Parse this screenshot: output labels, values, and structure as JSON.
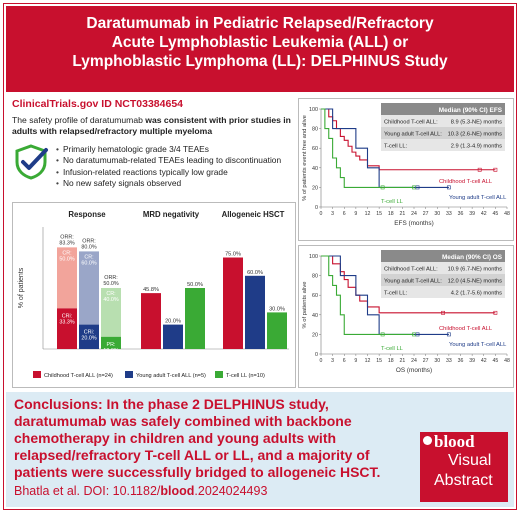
{
  "header": {
    "title": "Daratumumab in Pediatric Relapsed/Refractory\nAcute Lymphoblastic Leukemia (ALL) or\nLymphoblastic Lymphoma (LL): DELPHINUS Study"
  },
  "trial": {
    "id_label": "ClinicalTrials.gov ID NCT03384654"
  },
  "summary": {
    "prefix": "The safety profile of daratumumab ",
    "bold": "was consistent with prior studies in adults with relapsed/refractory multiple myeloma"
  },
  "bullets": [
    "Primarily hematologic grade 3/4 TEAEs",
    "No daratumumab-related TEAEs leading to discontinuation",
    "Infusion-related reactions typically low grade",
    "No new safety signals observed"
  ],
  "colors": {
    "childhood": "#c8102e",
    "young_adult": "#1f3c88",
    "tcell_ll": "#3aaa35",
    "brand": "#c8102e",
    "conclusion_bg": "#dcebf4"
  },
  "icons": [
    "check-shield-icon",
    "blood-logo-icon"
  ],
  "chart_data": [
    {
      "type": "bar",
      "ylabel": "% of patients",
      "ylim": [
        0,
        100
      ],
      "groups": [
        "Response",
        "MRD negativity",
        "Allogeneic HSCT"
      ],
      "series": [
        {
          "name": "Childhood T-cell ALL (n=24)"
        },
        {
          "name": "Young adult T-cell ALL (n=5)"
        },
        {
          "name": "T-cell LL (n=10)"
        }
      ],
      "response": {
        "orr": [
          83.3,
          80.0,
          50.0
        ],
        "orr_labels": [
          "ORR:\n83.3%",
          "ORR:\n80.0%",
          "ORR:\n50.0%"
        ],
        "cr": [
          33.3,
          20.0,
          10.0
        ],
        "cr_labels": [
          "CRi:\n33.3%",
          "CRi:\n20.0%",
          "PR:\n10.0%"
        ],
        "upper": [
          50.0,
          60.0,
          40.0
        ],
        "upper_labels": [
          "CR:\n50.0%",
          "CR:\n60.0%",
          "CR:\n40.0%"
        ]
      },
      "mrd_negativity": [
        45.8,
        20.0,
        50.0
      ],
      "mrd_labels": [
        "45.8%",
        "20.0%",
        "50.0%"
      ],
      "allogeneic_hsct": [
        75.0,
        60.0,
        30.0
      ],
      "hsct_labels": [
        "75.0%",
        "60.0%",
        "30.0%"
      ]
    },
    {
      "type": "line",
      "title": "Median (90% CI) EFS",
      "ylabel": "% of patients event free and alive",
      "xlabel": "EFS (months)",
      "xlim": [
        0,
        48
      ],
      "ylim": [
        0,
        100
      ],
      "xticks": [
        0,
        3,
        6,
        9,
        12,
        15,
        18,
        21,
        24,
        27,
        30,
        33,
        36,
        39,
        42,
        45,
        48
      ],
      "yticks": [
        0,
        20,
        40,
        60,
        80,
        100
      ],
      "table": [
        {
          "label": "Childhood T-cell ALL:",
          "value": "8.9 (5.3-NE) months"
        },
        {
          "label": "Young adult T-cell ALL:",
          "value": "10.3 (2.6-NE) months"
        },
        {
          "label": "T-cell LL:",
          "value": "2.9 (1.3-4.9) months"
        }
      ],
      "series": [
        {
          "name": "Childhood T-cell ALL",
          "x": [
            0,
            2,
            3,
            4,
            5,
            6,
            7,
            8,
            9,
            10,
            12,
            15,
            36,
            45
          ],
          "y": [
            100,
            92,
            88,
            80,
            72,
            68,
            62,
            56,
            52,
            48,
            42,
            38,
            38,
            38
          ]
        },
        {
          "name": "Young adult T-cell ALL",
          "x": [
            0,
            3,
            9,
            12,
            15,
            33
          ],
          "y": [
            100,
            80,
            60,
            40,
            20,
            20
          ]
        },
        {
          "name": "T-cell LL",
          "x": [
            0,
            1,
            2,
            3,
            4,
            5,
            6,
            24
          ],
          "y": [
            100,
            80,
            70,
            50,
            40,
            30,
            20,
            20
          ]
        }
      ]
    },
    {
      "type": "line",
      "title": "Median (90% CI) OS",
      "ylabel": "% of patients alive",
      "xlabel": "OS (months)",
      "xlim": [
        0,
        48
      ],
      "ylim": [
        0,
        100
      ],
      "xticks": [
        0,
        3,
        6,
        9,
        12,
        15,
        18,
        21,
        24,
        27,
        30,
        33,
        36,
        39,
        42,
        45,
        48
      ],
      "yticks": [
        0,
        20,
        40,
        60,
        80,
        100
      ],
      "table": [
        {
          "label": "Childhood T-cell ALL:",
          "value": "10.9 (6.7-NE) months"
        },
        {
          "label": "Young adult T-cell ALL:",
          "value": "12.0 (4.5-NE) months"
        },
        {
          "label": "T-cell LL:",
          "value": "4.2 (1.7-5.6) months"
        }
      ],
      "series": [
        {
          "name": "Childhood T-cell ALL",
          "x": [
            0,
            3,
            5,
            6,
            7,
            9,
            10,
            12,
            15,
            45
          ],
          "y": [
            100,
            92,
            84,
            76,
            68,
            60,
            54,
            48,
            42,
            42
          ]
        },
        {
          "name": "Young adult T-cell ALL",
          "x": [
            0,
            5,
            9,
            12,
            15,
            33
          ],
          "y": [
            100,
            80,
            60,
            40,
            20,
            20
          ]
        },
        {
          "name": "T-cell LL",
          "x": [
            0,
            2,
            3,
            4,
            5,
            6,
            24
          ],
          "y": [
            100,
            80,
            70,
            60,
            40,
            20,
            20
          ]
        }
      ]
    }
  ],
  "conclusion": {
    "bold": "Conclusions:",
    "text": " In the phase 2 DELPHINUS study, daratumumab was safely combined with backbone chemotherapy in children and young adults with relapsed/refractory T-cell ALL or LL, and a majority of patients were successfully bridged to allogeneic HSCT."
  },
  "citation": {
    "prefix": "Bhatla et al. DOI: 10.1182/",
    "journal": "blood",
    "suffix": ".2024024493"
  },
  "logo": {
    "word1": "blood",
    "word2": "Visual",
    "word3": "Abstract"
  }
}
